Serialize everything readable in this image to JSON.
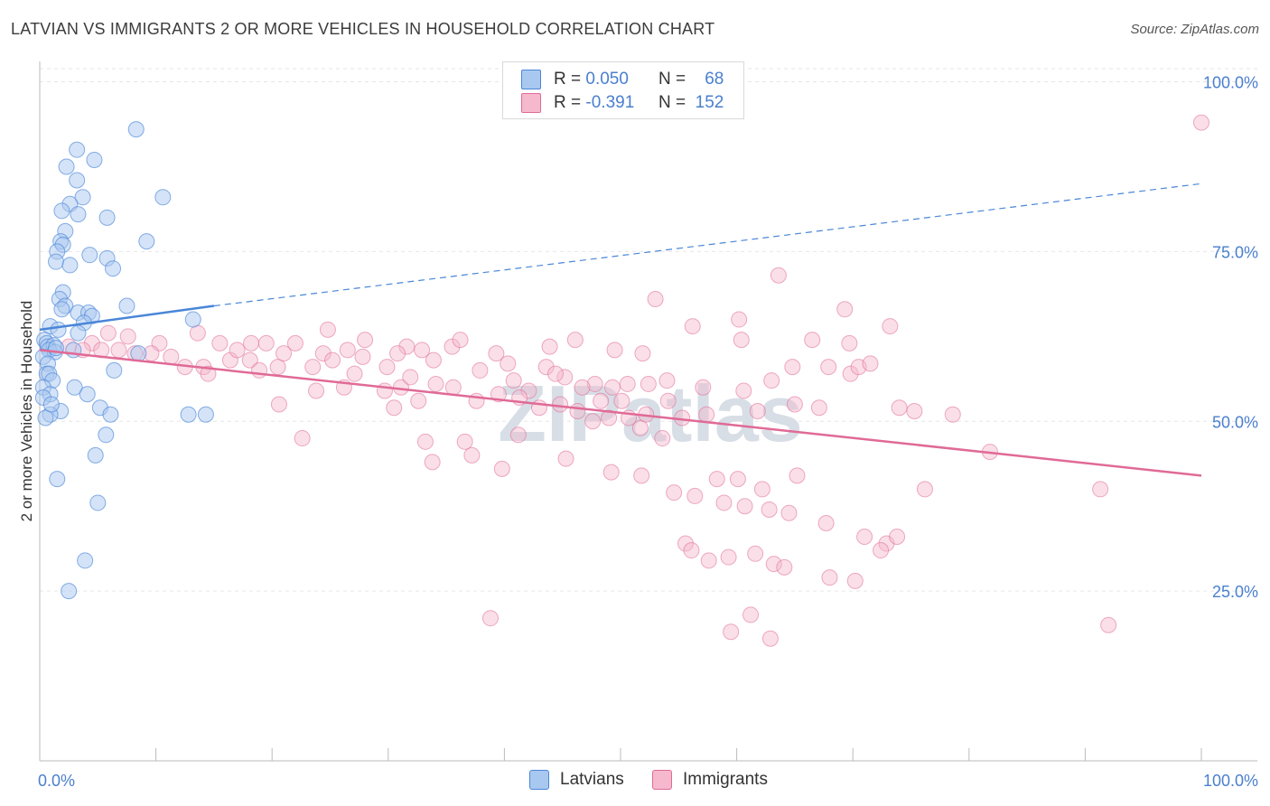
{
  "title": "LATVIAN VS IMMIGRANTS 2 OR MORE VEHICLES IN HOUSEHOLD CORRELATION CHART",
  "source": "Source: ZipAtlas.com",
  "watermark": "ZIPatlas",
  "legend": {
    "rows": [
      {
        "r_label": "R =",
        "r_value": "0.050",
        "n_label": "N =",
        "n_value": "68",
        "color": "#a9c8f0"
      },
      {
        "r_label": "R =",
        "r_value": "-0.391",
        "n_label": "N =",
        "n_value": "152",
        "color": "#f5b8cc"
      }
    ]
  },
  "bottom_legend": {
    "latvians": "Latvians",
    "immigrants": "Immigrants"
  },
  "chart_data": {
    "type": "scatter",
    "title": "LATVIAN VS IMMIGRANTS 2 OR MORE VEHICLES IN HOUSEHOLD CORRELATION CHART",
    "xlabel": "",
    "ylabel": "2 or more Vehicles in Household",
    "xlim": [
      0,
      100
    ],
    "ylim": [
      0,
      103
    ],
    "x_tick_labels": [
      "0.0%",
      "100.0%"
    ],
    "y_ticks": [
      25,
      50,
      75,
      100
    ],
    "y_tick_labels": [
      "25.0%",
      "50.0%",
      "75.0%",
      "100.0%"
    ],
    "colors": {
      "latvians": "#4a86d8",
      "immigrants": "#e06a96",
      "latvians_fill": "#a9c8f0",
      "immigrants_fill": "#f5b8cc",
      "axis_text": "#4a7fcf"
    },
    "series": [
      {
        "name": "Latvians",
        "trend": {
          "x0": 0,
          "y0": 63.5,
          "x1": 15,
          "y1": 67,
          "dashed_to_x": 100,
          "dashed_to_y": 85
        },
        "points": [
          [
            8.3,
            93
          ],
          [
            3.2,
            90
          ],
          [
            4.7,
            88.5
          ],
          [
            2.3,
            87.5
          ],
          [
            3.2,
            85.5
          ],
          [
            3.7,
            83
          ],
          [
            10.6,
            83
          ],
          [
            2.6,
            82
          ],
          [
            1.9,
            81
          ],
          [
            3.3,
            80.5
          ],
          [
            5.8,
            80
          ],
          [
            2.2,
            78
          ],
          [
            9.2,
            76.5
          ],
          [
            1.8,
            76.5
          ],
          [
            2.0,
            76
          ],
          [
            1.5,
            75
          ],
          [
            4.3,
            74.5
          ],
          [
            5.8,
            74
          ],
          [
            1.4,
            73.5
          ],
          [
            2.6,
            73
          ],
          [
            6.3,
            72.5
          ],
          [
            2.0,
            69
          ],
          [
            1.7,
            68
          ],
          [
            2.2,
            67
          ],
          [
            7.5,
            67
          ],
          [
            1.9,
            66.5
          ],
          [
            3.3,
            66
          ],
          [
            4.2,
            66
          ],
          [
            4.5,
            65.5
          ],
          [
            13.2,
            65
          ],
          [
            3.8,
            64.5
          ],
          [
            0.9,
            64
          ],
          [
            1.6,
            63.5
          ],
          [
            3.3,
            63
          ],
          [
            0.4,
            62
          ],
          [
            0.6,
            61.5
          ],
          [
            0.7,
            61
          ],
          [
            1.2,
            61.2
          ],
          [
            0.8,
            60.5
          ],
          [
            1.3,
            60.2
          ],
          [
            2.9,
            60.5
          ],
          [
            8.5,
            60
          ],
          [
            1.4,
            60.8
          ],
          [
            0.3,
            59.5
          ],
          [
            0.7,
            58.5
          ],
          [
            6.4,
            57.5
          ],
          [
            0.6,
            57
          ],
          [
            0.8,
            57
          ],
          [
            1.1,
            56
          ],
          [
            0.3,
            55
          ],
          [
            3.0,
            55
          ],
          [
            0.9,
            54
          ],
          [
            4.1,
            54
          ],
          [
            0.3,
            53.5
          ],
          [
            5.2,
            52
          ],
          [
            1.8,
            51.5
          ],
          [
            0.9,
            51
          ],
          [
            6.1,
            51
          ],
          [
            12.8,
            51
          ],
          [
            14.3,
            51
          ],
          [
            5.7,
            48
          ],
          [
            4.8,
            45
          ],
          [
            1.5,
            41.5
          ],
          [
            5.0,
            38
          ],
          [
            3.9,
            29.5
          ],
          [
            2.5,
            25
          ],
          [
            0.5,
            50.5
          ],
          [
            1.0,
            52.5
          ]
        ]
      },
      {
        "name": "Immigrants",
        "trend": {
          "x0": 0,
          "y0": 60.5,
          "x1": 100,
          "y1": 42
        },
        "points": [
          [
            100,
            94
          ],
          [
            63.6,
            71.5
          ],
          [
            53,
            68
          ],
          [
            69.3,
            66.5
          ],
          [
            56.2,
            64
          ],
          [
            60.2,
            65
          ],
          [
            73.2,
            64
          ],
          [
            24.8,
            63.5
          ],
          [
            60.4,
            62
          ],
          [
            46.1,
            62
          ],
          [
            66.5,
            62
          ],
          [
            69.7,
            61.5
          ],
          [
            4.5,
            61.5
          ],
          [
            5.9,
            63
          ],
          [
            7.6,
            62.5
          ],
          [
            10.3,
            61.5
          ],
          [
            15.5,
            61.5
          ],
          [
            31.6,
            61
          ],
          [
            35.5,
            61
          ],
          [
            43.9,
            61
          ],
          [
            49.5,
            60.5
          ],
          [
            51.9,
            60
          ],
          [
            39.3,
            60
          ],
          [
            26.5,
            60.5
          ],
          [
            19.5,
            61.5
          ],
          [
            22.0,
            61.5
          ],
          [
            2.5,
            61
          ],
          [
            3.7,
            60.5
          ],
          [
            5.3,
            60.5
          ],
          [
            6.8,
            60.5
          ],
          [
            8.2,
            60
          ],
          [
            9.6,
            60
          ],
          [
            11.3,
            59.5
          ],
          [
            12.5,
            58
          ],
          [
            14.1,
            58
          ],
          [
            16.4,
            59
          ],
          [
            18.1,
            59
          ],
          [
            20.5,
            58
          ],
          [
            23.5,
            58
          ],
          [
            27.8,
            59.5
          ],
          [
            29.9,
            58
          ],
          [
            30.8,
            60
          ],
          [
            33.9,
            59
          ],
          [
            37.9,
            57.5
          ],
          [
            40.8,
            56
          ],
          [
            43.6,
            58
          ],
          [
            45.2,
            56.5
          ],
          [
            47.8,
            55.5
          ],
          [
            52.4,
            55.5
          ],
          [
            54.0,
            56
          ],
          [
            57.1,
            55
          ],
          [
            63.0,
            56
          ],
          [
            64.8,
            58
          ],
          [
            67.9,
            58
          ],
          [
            69.8,
            57
          ],
          [
            70.5,
            58
          ],
          [
            71.5,
            58.5
          ],
          [
            13.6,
            63
          ],
          [
            17.0,
            60.5
          ],
          [
            18.2,
            61.5
          ],
          [
            21.0,
            60
          ],
          [
            24.4,
            60
          ],
          [
            25.2,
            59
          ],
          [
            28.0,
            62
          ],
          [
            32.9,
            60.5
          ],
          [
            36.2,
            62
          ],
          [
            40.3,
            58.5
          ],
          [
            44.4,
            57
          ],
          [
            42.1,
            54.5
          ],
          [
            46.7,
            55
          ],
          [
            49.3,
            55
          ],
          [
            50.6,
            55.5
          ],
          [
            50.1,
            53
          ],
          [
            48.3,
            53
          ],
          [
            52.2,
            51
          ],
          [
            54.1,
            53
          ],
          [
            55.3,
            50.5
          ],
          [
            57.4,
            51
          ],
          [
            60.6,
            54.5
          ],
          [
            61.8,
            51.5
          ],
          [
            65.0,
            52.5
          ],
          [
            67.1,
            52
          ],
          [
            74.0,
            52
          ],
          [
            75.3,
            51.5
          ],
          [
            78.6,
            51
          ],
          [
            23.8,
            54.5
          ],
          [
            26.2,
            55
          ],
          [
            29.7,
            54.5
          ],
          [
            31.1,
            55
          ],
          [
            32.6,
            53
          ],
          [
            34.1,
            55.5
          ],
          [
            35.6,
            55
          ],
          [
            37.6,
            53
          ],
          [
            39.5,
            54
          ],
          [
            41.3,
            53.5
          ],
          [
            43.0,
            52
          ],
          [
            44.8,
            52.5
          ],
          [
            46.3,
            51.5
          ],
          [
            47.6,
            50
          ],
          [
            49.0,
            50.5
          ],
          [
            50.7,
            50.5
          ],
          [
            51.7,
            49
          ],
          [
            53.6,
            47.5
          ],
          [
            41.2,
            48
          ],
          [
            37.2,
            45
          ],
          [
            36.6,
            47
          ],
          [
            33.8,
            44
          ],
          [
            33.2,
            47
          ],
          [
            22.6,
            47.5
          ],
          [
            39.8,
            43
          ],
          [
            45.3,
            44.5
          ],
          [
            49.2,
            42.5
          ],
          [
            51.8,
            42
          ],
          [
            58.3,
            41.5
          ],
          [
            60.1,
            41.5
          ],
          [
            62.2,
            40
          ],
          [
            65.2,
            42
          ],
          [
            76.2,
            40
          ],
          [
            81.8,
            45.5
          ],
          [
            91.3,
            40
          ],
          [
            54.6,
            39.5
          ],
          [
            56.4,
            39
          ],
          [
            58.9,
            38
          ],
          [
            60.7,
            37.5
          ],
          [
            62.8,
            37
          ],
          [
            64.5,
            36.5
          ],
          [
            67.7,
            35
          ],
          [
            71.0,
            33
          ],
          [
            72.9,
            32
          ],
          [
            55.6,
            32
          ],
          [
            56.1,
            31
          ],
          [
            57.6,
            29.5
          ],
          [
            59.3,
            30
          ],
          [
            61.6,
            30.5
          ],
          [
            63.2,
            29
          ],
          [
            64.1,
            28.5
          ],
          [
            68.0,
            27
          ],
          [
            70.2,
            26.5
          ],
          [
            72.4,
            31
          ],
          [
            73.8,
            33
          ],
          [
            20.6,
            52.5
          ],
          [
            30.5,
            52
          ],
          [
            38.8,
            21
          ],
          [
            59.5,
            19
          ],
          [
            61.2,
            21.5
          ],
          [
            62.9,
            18
          ],
          [
            92.0,
            20
          ],
          [
            14.5,
            57
          ],
          [
            18.9,
            57.5
          ],
          [
            27.1,
            57
          ],
          [
            31.9,
            56.5
          ]
        ]
      }
    ]
  }
}
